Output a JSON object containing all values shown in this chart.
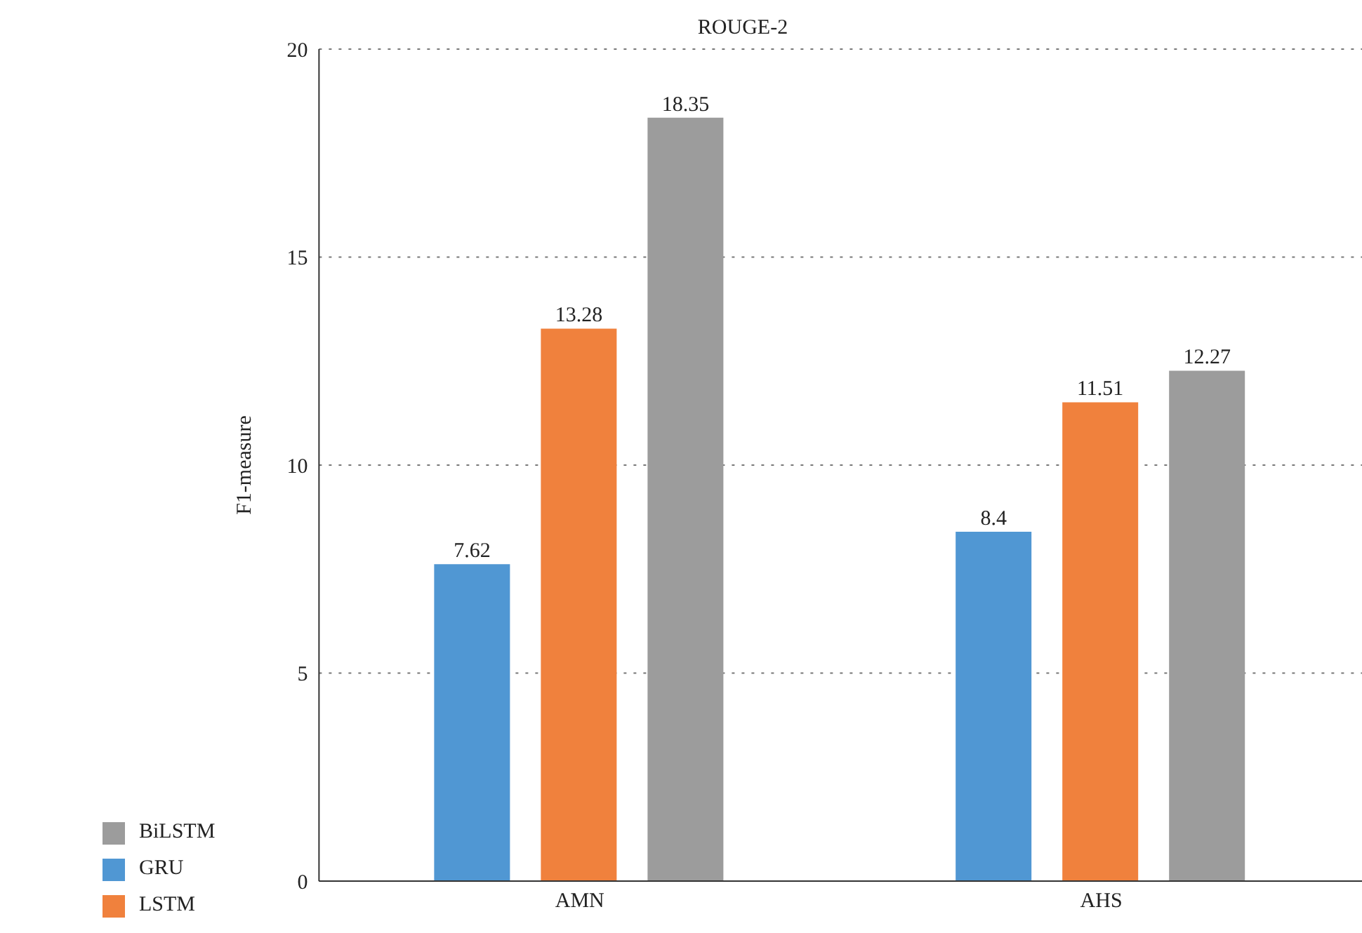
{
  "chart_data": {
    "type": "bar",
    "title": "ROUGE-2",
    "ylabel": "F1-measure",
    "categories": [
      "AMN",
      "AHS"
    ],
    "series": [
      {
        "name": "GRU",
        "color": "#5097d3",
        "values": [
          7.62,
          8.4
        ]
      },
      {
        "name": "LSTM",
        "color": "#f0813d",
        "values": [
          13.28,
          11.51
        ]
      },
      {
        "name": "BiLSTM",
        "color": "#9c9c9c",
        "values": [
          18.35,
          12.27
        ]
      }
    ],
    "ylim": [
      0,
      20
    ],
    "yticks": [
      0,
      5,
      10,
      15,
      20
    ],
    "grid": "y",
    "legend": "bottom left",
    "data_labels": true
  }
}
